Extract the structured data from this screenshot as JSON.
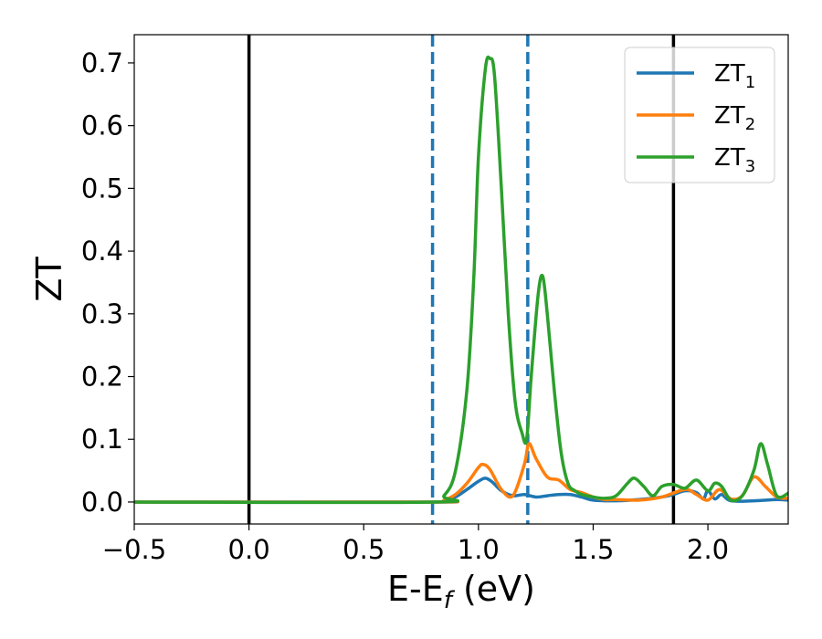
{
  "chart_data": {
    "type": "line",
    "xlabel": {
      "base": "E-E",
      "sub": "f",
      "rest": " (eV)"
    },
    "ylabel": "ZT",
    "xlim": [
      -0.5,
      2.35
    ],
    "ylim": [
      -0.035,
      0.745
    ],
    "x_ticks": [
      -0.5,
      0.0,
      0.5,
      1.0,
      1.5,
      2.0
    ],
    "x_tick_labels": [
      "−0.5",
      "0.0",
      "0.5",
      "1.0",
      "1.5",
      "2.0"
    ],
    "y_ticks": [
      0.0,
      0.1,
      0.2,
      0.3,
      0.4,
      0.5,
      0.6,
      0.7
    ],
    "y_tick_labels": [
      "0.0",
      "0.1",
      "0.2",
      "0.3",
      "0.4",
      "0.5",
      "0.6",
      "0.7"
    ],
    "grid": false,
    "legend_position": "top-right",
    "vertical_lines": [
      {
        "x": 0.0,
        "style": "solid",
        "color": "#000000"
      },
      {
        "x": 1.85,
        "style": "solid",
        "color": "#000000"
      },
      {
        "x": 0.8,
        "style": "dashed",
        "color": "#1f77b4"
      },
      {
        "x": 1.215,
        "style": "dashed",
        "color": "#1f77b4"
      }
    ],
    "series": [
      {
        "name": "ZT",
        "sub": "1",
        "color": "#1f77b4",
        "x": [
          -0.5,
          0.8,
          0.85,
          0.9,
          0.95,
          1.0,
          1.03,
          1.06,
          1.1,
          1.15,
          1.2,
          1.25,
          1.3,
          1.35,
          1.4,
          1.45,
          1.5,
          1.6,
          1.7,
          1.8,
          1.85,
          1.9,
          1.95,
          1.98,
          2.0,
          2.03,
          2.06,
          2.1,
          2.2,
          2.3,
          2.35
        ],
        "y": [
          0.0,
          0.0,
          0.002,
          0.008,
          0.02,
          0.033,
          0.038,
          0.032,
          0.018,
          0.01,
          0.012,
          0.008,
          0.01,
          0.012,
          0.012,
          0.008,
          0.003,
          0.002,
          0.004,
          0.008,
          0.012,
          0.018,
          0.015,
          0.005,
          0.018,
          0.005,
          0.012,
          0.002,
          0.002,
          0.004,
          0.003
        ]
      },
      {
        "name": "ZT",
        "sub": "2",
        "color": "#ff7f0e",
        "x": [
          -0.5,
          0.8,
          0.85,
          0.9,
          0.95,
          1.0,
          1.02,
          1.05,
          1.1,
          1.15,
          1.2,
          1.22,
          1.25,
          1.3,
          1.35,
          1.4,
          1.45,
          1.5,
          1.55,
          1.6,
          1.7,
          1.8,
          1.9,
          1.95,
          2.0,
          2.05,
          2.1,
          2.15,
          2.2,
          2.25,
          2.3,
          2.35
        ],
        "y": [
          0.0,
          0.0,
          0.003,
          0.012,
          0.03,
          0.055,
          0.06,
          0.052,
          0.02,
          0.01,
          0.06,
          0.093,
          0.07,
          0.04,
          0.035,
          0.02,
          0.015,
          0.008,
          0.004,
          0.004,
          0.003,
          0.008,
          0.02,
          0.012,
          0.003,
          0.02,
          0.005,
          0.01,
          0.04,
          0.025,
          0.008,
          0.006
        ]
      },
      {
        "name": "ZT",
        "sub": "3",
        "color": "#2ca02c",
        "x": [
          -0.5,
          0.8,
          0.85,
          0.9,
          0.95,
          0.98,
          1.0,
          1.03,
          1.05,
          1.07,
          1.1,
          1.13,
          1.16,
          1.19,
          1.21,
          1.23,
          1.26,
          1.28,
          1.3,
          1.33,
          1.36,
          1.39,
          1.42,
          1.45,
          1.5,
          1.55,
          1.6,
          1.65,
          1.68,
          1.72,
          1.76,
          1.8,
          1.85,
          1.9,
          1.95,
          2.0,
          2.03,
          2.06,
          2.1,
          2.15,
          2.2,
          2.23,
          2.26,
          2.3,
          2.35
        ],
        "y": [
          0.0,
          0.0,
          0.01,
          0.05,
          0.18,
          0.36,
          0.55,
          0.69,
          0.707,
          0.68,
          0.5,
          0.3,
          0.16,
          0.11,
          0.1,
          0.2,
          0.33,
          0.36,
          0.3,
          0.18,
          0.08,
          0.03,
          0.018,
          0.012,
          0.008,
          0.006,
          0.01,
          0.03,
          0.038,
          0.025,
          0.01,
          0.025,
          0.028,
          0.022,
          0.035,
          0.018,
          0.03,
          0.025,
          0.003,
          0.01,
          0.05,
          0.093,
          0.06,
          0.01,
          0.014
        ]
      }
    ]
  }
}
